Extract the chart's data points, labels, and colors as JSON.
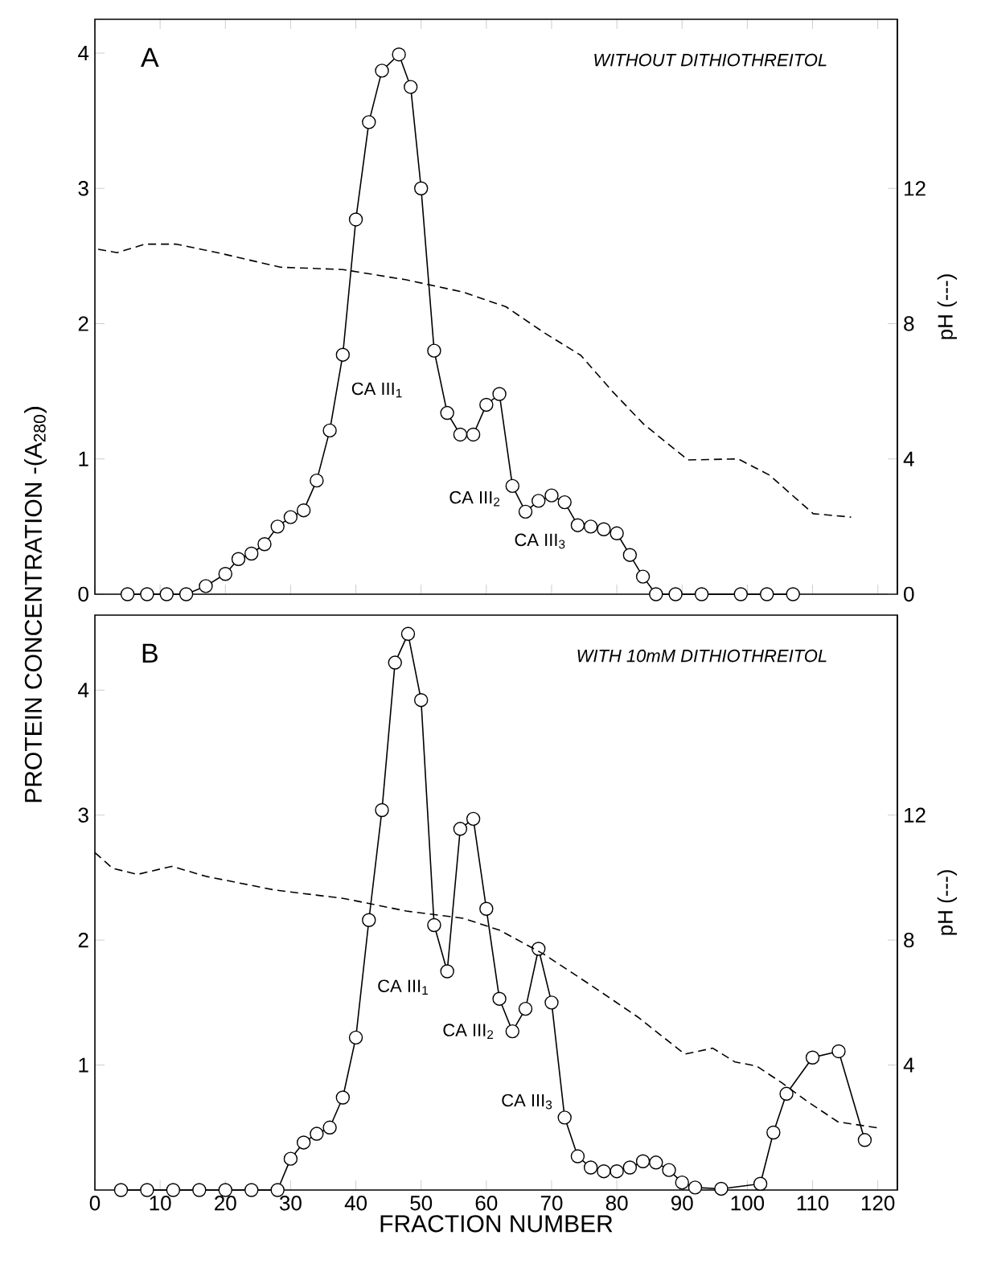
{
  "chart_data": [
    {
      "type": "line",
      "title": "WITHOUT DITHIOTHREITOL",
      "y2label": "pH (---)",
      "annotations": [
        "A",
        {
          "text": "CA III$_{1}$",
          "x": 38,
          "y": 1.77
        },
        {
          "text": "CA III$_{2}$",
          "x": 64,
          "y": 0.8
        },
        {
          "text": "CA III$_{3}$",
          "x": 74,
          "y": 0.51
        }
      ],
      "tick_labels": "y",
      "xlim": [
        0,
        123
      ],
      "xticks": [
        0,
        10,
        20,
        30,
        40,
        50,
        60,
        70,
        80,
        90,
        100,
        110,
        120
      ],
      "ylim": [
        0,
        4.25
      ],
      "yticks": [
        0,
        1,
        2,
        3,
        4
      ],
      "y2lim": [
        0,
        17
      ],
      "y2ticks": [
        0,
        4,
        8,
        12
      ],
      "series": [
        {
          "type": "line",
          "color": "#000000",
          "marker": "circle",
          "line_style": "solid",
          "x": [
            5,
            8,
            11,
            14,
            17,
            20,
            22,
            24,
            26,
            28,
            30,
            32,
            34,
            36,
            38,
            40,
            42,
            44,
            46.6,
            48.4,
            50,
            52,
            54,
            56,
            58,
            60,
            62,
            64,
            66,
            68,
            70,
            72,
            74,
            76,
            78,
            80,
            82,
            84,
            86,
            89,
            93,
            99,
            103,
            107
          ],
          "values": [
            0,
            0,
            0,
            0,
            0.06,
            0.15,
            0.26,
            0.3,
            0.37,
            0.5,
            0.57,
            0.62,
            0.84,
            1.21,
            1.77,
            2.77,
            3.49,
            3.87,
            3.99,
            3.75,
            3.0,
            1.8,
            1.34,
            1.18,
            1.18,
            1.4,
            1.48,
            0.8,
            0.61,
            0.69,
            0.73,
            0.68,
            0.51,
            0.5,
            0.48,
            0.45,
            0.29,
            0.13,
            0,
            0,
            0,
            0,
            0,
            0
          ]
        },
        {
          "type": "line",
          "axis": "y2",
          "color": "#000000",
          "marker": "none",
          "line_style": "dashed",
          "x": [
            0.5,
            3.4,
            7.7,
            12.5,
            18.8,
            28.4,
            38,
            47.6,
            56.3,
            63,
            68.8,
            74.5,
            79.3,
            84.1,
            90.9,
            98.6,
            103.4,
            110.1,
            115.9
          ],
          "values": [
            10.2,
            10.1,
            10.35,
            10.35,
            10.1,
            9.67,
            9.6,
            9.3,
            8.94,
            8.5,
            7.74,
            7.06,
            6.0,
            5.03,
            3.97,
            4.0,
            3.52,
            2.38,
            2.28
          ]
        }
      ]
    },
    {
      "type": "line",
      "title": "WITH 10mM DITHIOTHREITOL",
      "xlabel": "FRACTION NUMBER",
      "ylabel": "PROTEIN CONCENTRATION -(A$_{280}$)",
      "y2label": "pH (---)",
      "annotations": [
        "B",
        {
          "text": "CA III$_{1}$",
          "x": 54,
          "y": 1.75
        },
        {
          "text": "CA III$_{2}$",
          "x": 64,
          "y": 1.27
        },
        {
          "text": "CA III$_{3}$",
          "x": 72,
          "y": 0.58
        }
      ],
      "xlim": [
        0,
        123
      ],
      "xticks": [
        0,
        10,
        20,
        30,
        40,
        50,
        60,
        70,
        80,
        90,
        100,
        110,
        120
      ],
      "ylim": [
        0,
        4.6
      ],
      "yticks": [
        1,
        2,
        3,
        4
      ],
      "y2lim": [
        0,
        18.4
      ],
      "y2ticks": [
        4,
        8,
        12
      ],
      "series": [
        {
          "type": "line",
          "color": "#000000",
          "marker": "circle",
          "line_style": "solid",
          "x": [
            4,
            8,
            12,
            16,
            20,
            24,
            28,
            30,
            32,
            34,
            36,
            38,
            40,
            42,
            44,
            46,
            48,
            50,
            52,
            54,
            56,
            58,
            60,
            62,
            64,
            66,
            68,
            70,
            72,
            74,
            76,
            78,
            80,
            82,
            84,
            86,
            88,
            90,
            92,
            96,
            102,
            104,
            106,
            110,
            114,
            118
          ],
          "values": [
            0,
            0,
            0,
            0,
            0,
            0,
            0,
            0.25,
            0.38,
            0.45,
            0.5,
            0.74,
            1.22,
            2.16,
            3.04,
            4.22,
            4.45,
            3.92,
            2.12,
            1.75,
            2.89,
            2.97,
            2.25,
            1.53,
            1.27,
            1.45,
            1.93,
            1.5,
            0.58,
            0.27,
            0.18,
            0.15,
            0.15,
            0.18,
            0.23,
            0.22,
            0.16,
            0.06,
            0.02,
            0.01,
            0.05,
            0.46,
            0.77,
            1.06,
            1.11,
            0.4
          ]
        },
        {
          "type": "line",
          "axis": "y2",
          "color": "#000000",
          "marker": "none",
          "line_style": "dashed",
          "x": [
            0,
            2.7,
            6.5,
            11.8,
            17,
            27.6,
            38.2,
            47.7,
            56.4,
            62.1,
            68.8,
            76.5,
            83.2,
            90.4,
            94.7,
            98.1,
            101.4,
            105.3,
            109.1,
            113.9,
            120
          ],
          "values": [
            10.8,
            10.3,
            10.1,
            10.36,
            10.04,
            9.6,
            9.33,
            8.93,
            8.7,
            8.31,
            7.55,
            6.49,
            5.54,
            4.35,
            4.54,
            4.1,
            3.97,
            3.43,
            2.85,
            2.18,
            1.99
          ]
        }
      ]
    }
  ]
}
